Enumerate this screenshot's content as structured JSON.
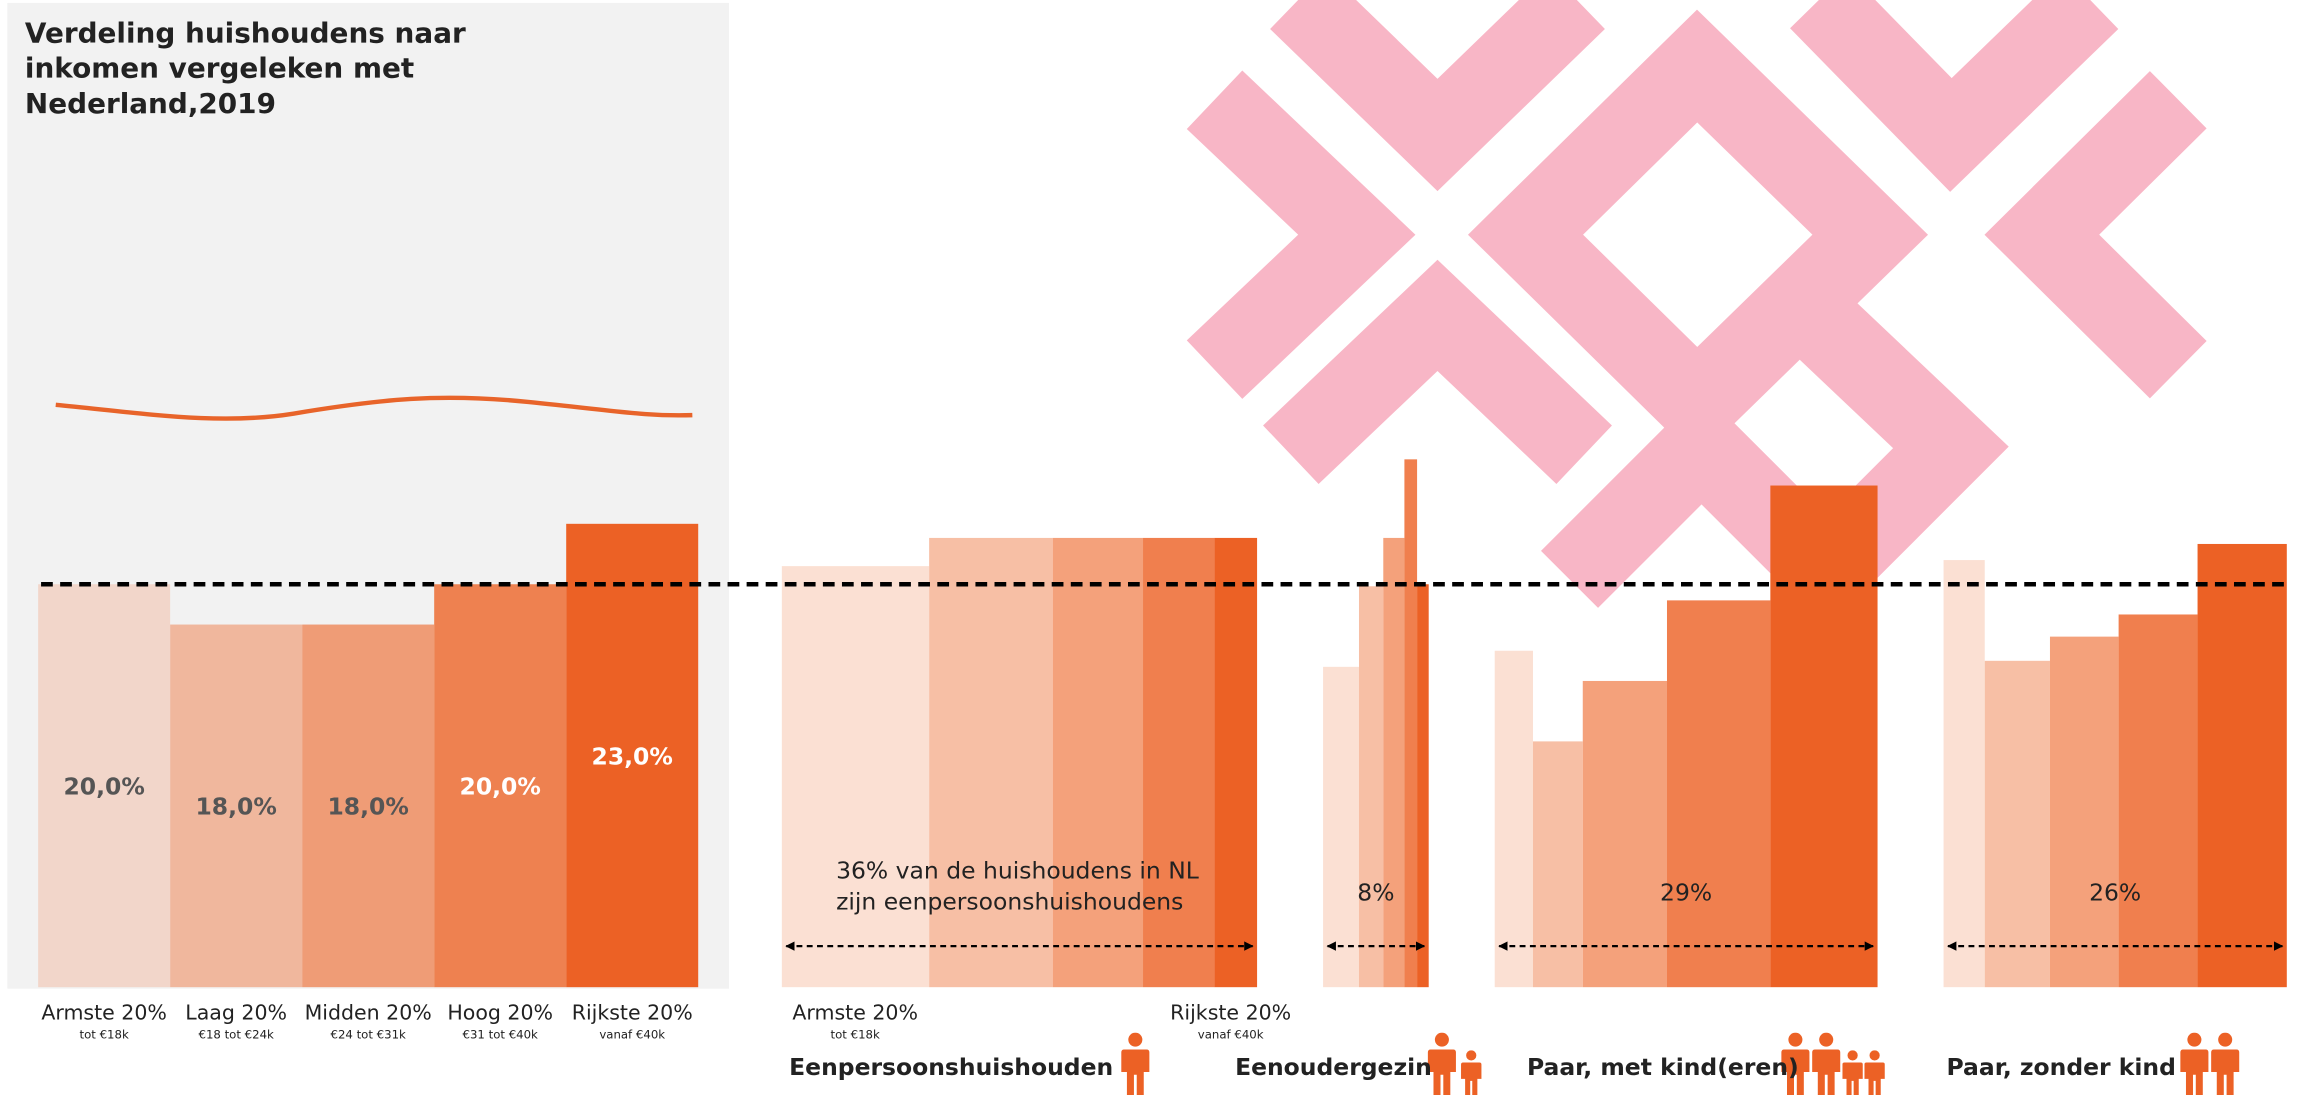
{
  "title_lines": [
    "Verdeling huishoudens naar",
    "inkomen vergeleken met",
    "Nederland,2019"
  ],
  "reference_line": 20,
  "chart_data": [
    {
      "type": "bar",
      "categories": [
        "Armste 20%",
        "Laag 20%",
        "Midden 20%",
        "Hoog 20%",
        "Rijkste 20%"
      ],
      "sublabels": [
        "tot €18k",
        "€18 tot €24k",
        "€24 tot €31k",
        "€31 tot €40k",
        "vanaf €40k"
      ],
      "values": [
        20,
        18,
        18,
        20,
        23
      ],
      "value_labels": [
        "20,0%",
        "18,0%",
        "18,0%",
        "20,0%",
        "23,0%"
      ],
      "colors": [
        "#f2d6ca",
        "#f0b79d",
        "#ef9c76",
        "#ee8150",
        "#ec6125"
      ],
      "ylim": [
        0,
        49
      ]
    },
    {
      "type": "marimekko",
      "colors": [
        "#fbe0d3",
        "#f7bfa5",
        "#f4a17b",
        "#f07f4e",
        "#ec6125"
      ],
      "ylim": [
        0,
        49
      ],
      "groups": [
        {
          "name": "Eenpersoonshuishouden",
          "share": 36,
          "share_label": [
            "36% van de huishoudens in NL",
            "zijn eenpersoonshuishoudens"
          ],
          "values": [
            20.9,
            22.3,
            22.3,
            22.3,
            22.3
          ],
          "widths": [
            31,
            26,
            19,
            15,
            9
          ],
          "end_labels": [
            [
              "Armste 20%",
              "tot €18k"
            ],
            [
              "Rijkste 20%",
              "vanaf €40k"
            ]
          ]
        },
        {
          "name": "Eenoudergezin",
          "share": 8,
          "share_label": [
            "8%"
          ],
          "values": [
            15.9,
            19.9,
            22.3,
            26.2,
            20
          ],
          "widths": [
            34,
            23,
            20,
            12,
            11
          ]
        },
        {
          "name": "Paar, met kind(eren)",
          "share": 29,
          "share_label": [
            "29%"
          ],
          "values": [
            16.7,
            12.2,
            15.2,
            19.2,
            24.9
          ],
          "widths": [
            10,
            13,
            22,
            27,
            28
          ]
        },
        {
          "name": "Paar, zonder kind",
          "share": 26,
          "share_label": [
            "26%"
          ],
          "values": [
            21.2,
            16.2,
            17.4,
            18.5,
            22
          ],
          "widths": [
            12,
            19,
            20,
            23,
            26
          ]
        }
      ]
    }
  ]
}
